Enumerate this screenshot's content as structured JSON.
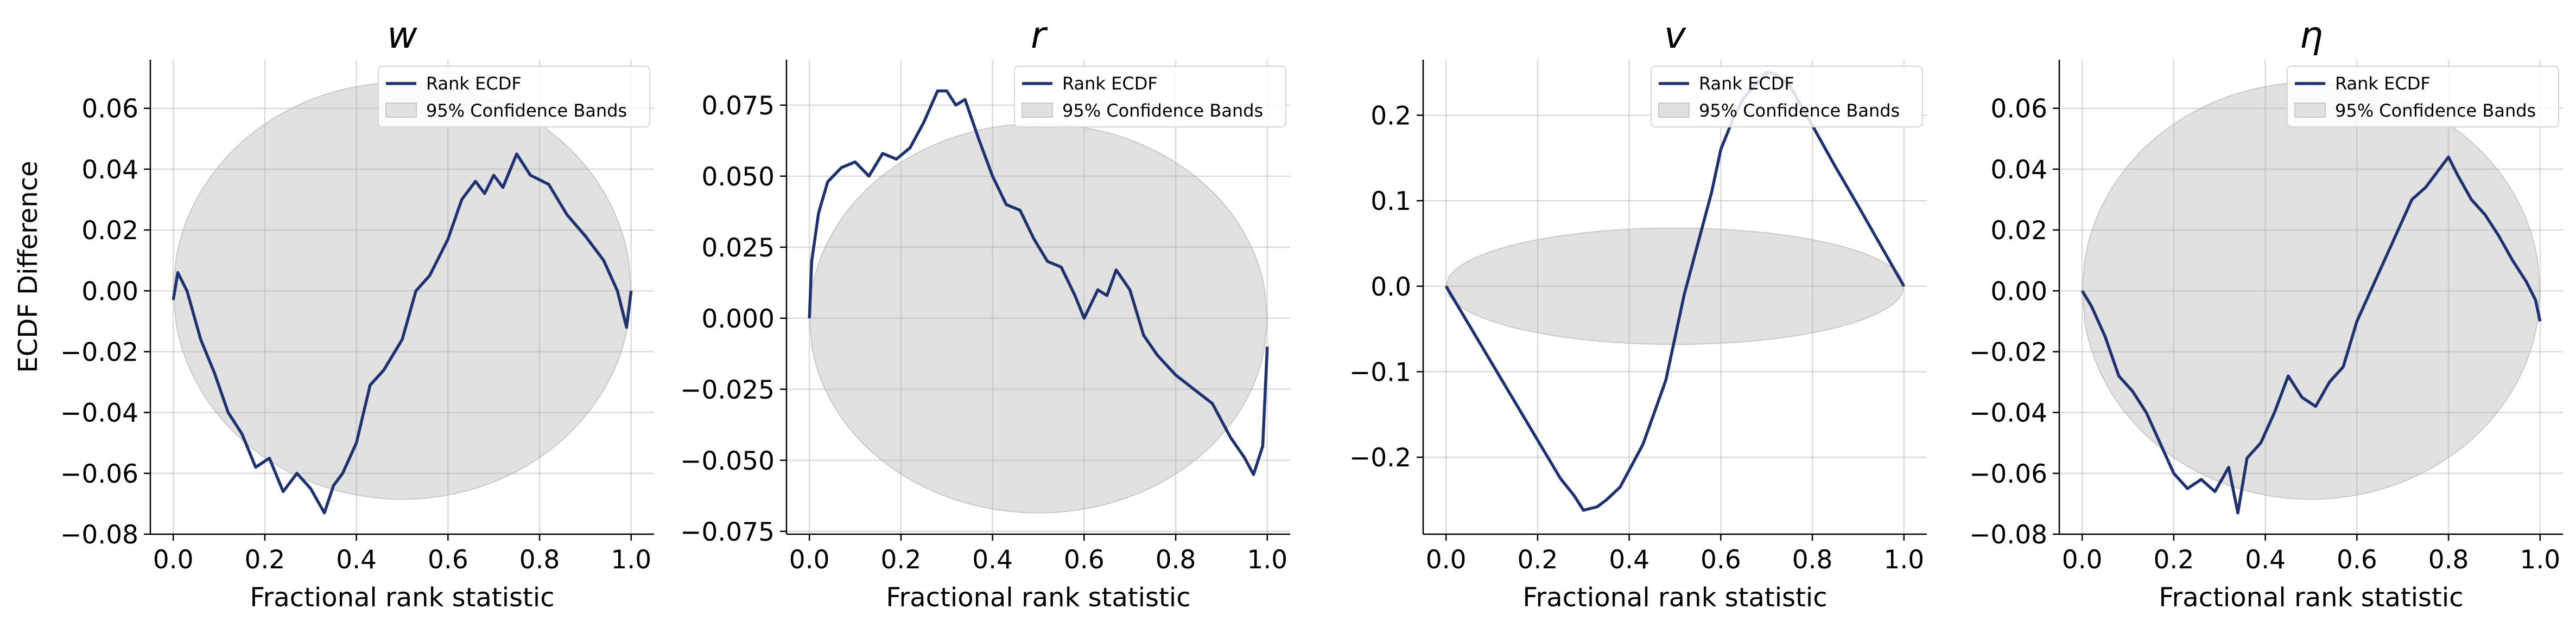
{
  "figure": {
    "ylabel": "ECDF Difference",
    "legend_line_label": "Rank ECDF",
    "legend_band_label": "95% Confidence Bands",
    "line_color": "#1f3270",
    "band_color": "#e1e1e1"
  },
  "chart_data": [
    {
      "type": "line",
      "title": "w",
      "xlabel": "Fractional rank statistic",
      "ylabel": "ECDF Difference",
      "xlim": [
        -0.05,
        1.05
      ],
      "ylim": [
        -0.08,
        0.076
      ],
      "xticks": [
        0.0,
        0.2,
        0.4,
        0.6,
        0.8,
        1.0
      ],
      "xtick_labels": [
        "0.0",
        "0.2",
        "0.4",
        "0.6",
        "0.8",
        "1.0"
      ],
      "yticks": [
        -0.08,
        -0.06,
        -0.04,
        -0.02,
        0.0,
        0.02,
        0.04,
        0.06
      ],
      "ytick_labels": [
        "−0.08",
        "−0.06",
        "−0.04",
        "−0.02",
        "0.00",
        "0.02",
        "0.04",
        "0.06"
      ],
      "grid": true,
      "legend": "top-right",
      "band_halfwidth": 0.0685,
      "series": [
        {
          "name": "Rank ECDF",
          "x": [
            0.0,
            0.01,
            0.03,
            0.06,
            0.09,
            0.12,
            0.15,
            0.18,
            0.21,
            0.24,
            0.27,
            0.3,
            0.33,
            0.35,
            0.37,
            0.4,
            0.43,
            0.46,
            0.5,
            0.53,
            0.56,
            0.6,
            0.63,
            0.66,
            0.68,
            0.7,
            0.72,
            0.75,
            0.78,
            0.82,
            0.86,
            0.9,
            0.94,
            0.97,
            0.99,
            1.0
          ],
          "y": [
            -0.003,
            0.006,
            0.0,
            -0.016,
            -0.027,
            -0.04,
            -0.047,
            -0.058,
            -0.055,
            -0.066,
            -0.06,
            -0.065,
            -0.073,
            -0.064,
            -0.06,
            -0.05,
            -0.031,
            -0.026,
            -0.016,
            0.0,
            0.005,
            0.017,
            0.03,
            0.036,
            0.032,
            0.038,
            0.034,
            0.045,
            0.038,
            0.035,
            0.025,
            0.018,
            0.01,
            0.0,
            -0.012,
            0.0
          ]
        }
      ]
    },
    {
      "type": "line",
      "title": "r",
      "xlabel": "Fractional rank statistic",
      "xlim": [
        -0.05,
        1.05
      ],
      "ylim": [
        -0.076,
        0.091
      ],
      "xticks": [
        0.0,
        0.2,
        0.4,
        0.6,
        0.8,
        1.0
      ],
      "xtick_labels": [
        "0.0",
        "0.2",
        "0.4",
        "0.6",
        "0.8",
        "1.0"
      ],
      "yticks": [
        -0.075,
        -0.05,
        -0.025,
        0.0,
        0.025,
        0.05,
        0.075
      ],
      "ytick_labels": [
        "−0.075",
        "−0.050",
        "−0.025",
        "0.000",
        "0.025",
        "0.050",
        "0.075"
      ],
      "grid": true,
      "legend": "top-right",
      "band_halfwidth": 0.0685,
      "series": [
        {
          "name": "Rank ECDF",
          "x": [
            0.0,
            0.005,
            0.02,
            0.04,
            0.07,
            0.1,
            0.13,
            0.16,
            0.19,
            0.22,
            0.25,
            0.28,
            0.3,
            0.32,
            0.34,
            0.37,
            0.4,
            0.43,
            0.46,
            0.49,
            0.52,
            0.55,
            0.58,
            0.6,
            0.63,
            0.65,
            0.67,
            0.7,
            0.73,
            0.76,
            0.8,
            0.84,
            0.88,
            0.92,
            0.95,
            0.97,
            0.99,
            1.0
          ],
          "y": [
            0.0,
            0.02,
            0.037,
            0.048,
            0.053,
            0.055,
            0.05,
            0.058,
            0.056,
            0.06,
            0.069,
            0.08,
            0.08,
            0.075,
            0.077,
            0.063,
            0.05,
            0.04,
            0.038,
            0.028,
            0.02,
            0.018,
            0.008,
            0.0,
            0.01,
            0.008,
            0.017,
            0.01,
            -0.006,
            -0.013,
            -0.02,
            -0.025,
            -0.03,
            -0.042,
            -0.049,
            -0.055,
            -0.045,
            -0.01
          ]
        }
      ]
    },
    {
      "type": "line",
      "title": "v",
      "xlabel": "Fractional rank statistic",
      "xlim": [
        -0.05,
        1.05
      ],
      "ylim": [
        -0.29,
        0.265
      ],
      "xticks": [
        0.0,
        0.2,
        0.4,
        0.6,
        0.8,
        1.0
      ],
      "xtick_labels": [
        "0.0",
        "0.2",
        "0.4",
        "0.6",
        "0.8",
        "1.0"
      ],
      "yticks": [
        -0.2,
        -0.1,
        0.0,
        0.1,
        0.2
      ],
      "ytick_labels": [
        "−0.2",
        "−0.1",
        "0.0",
        "0.1",
        "0.2"
      ],
      "grid": true,
      "legend": "top-right",
      "band_halfwidth": 0.068,
      "series": [
        {
          "name": "Rank ECDF",
          "x": [
            0.0,
            0.05,
            0.1,
            0.15,
            0.2,
            0.25,
            0.28,
            0.3,
            0.33,
            0.35,
            0.38,
            0.4,
            0.43,
            0.45,
            0.48,
            0.5,
            0.52,
            0.55,
            0.58,
            0.6,
            0.63,
            0.65,
            0.68,
            0.7,
            0.72,
            0.75,
            0.8,
            0.85,
            0.9,
            0.95,
            1.0
          ],
          "y": [
            0.0,
            -0.045,
            -0.09,
            -0.135,
            -0.18,
            -0.225,
            -0.245,
            -0.262,
            -0.258,
            -0.25,
            -0.235,
            -0.215,
            -0.185,
            -0.155,
            -0.11,
            -0.06,
            -0.01,
            0.05,
            0.11,
            0.16,
            0.2,
            0.22,
            0.238,
            0.25,
            0.248,
            0.235,
            0.188,
            0.14,
            0.094,
            0.047,
            0.0
          ]
        }
      ]
    },
    {
      "type": "line",
      "title": "η",
      "xlabel": "Fractional rank statistic",
      "xlim": [
        -0.05,
        1.05
      ],
      "ylim": [
        -0.08,
        0.076
      ],
      "xticks": [
        0.0,
        0.2,
        0.4,
        0.6,
        0.8,
        1.0
      ],
      "xtick_labels": [
        "0.0",
        "0.2",
        "0.4",
        "0.6",
        "0.8",
        "1.0"
      ],
      "yticks": [
        -0.08,
        -0.06,
        -0.04,
        -0.02,
        0.0,
        0.02,
        0.04,
        0.06
      ],
      "ytick_labels": [
        "−0.08",
        "−0.06",
        "−0.04",
        "−0.02",
        "0.00",
        "0.02",
        "0.04",
        "0.06"
      ],
      "grid": true,
      "legend": "top-right",
      "band_halfwidth": 0.0685,
      "series": [
        {
          "name": "Rank ECDF",
          "x": [
            0.0,
            0.02,
            0.05,
            0.08,
            0.11,
            0.14,
            0.17,
            0.2,
            0.23,
            0.26,
            0.29,
            0.32,
            0.34,
            0.36,
            0.39,
            0.42,
            0.45,
            0.48,
            0.51,
            0.54,
            0.57,
            0.6,
            0.63,
            0.66,
            0.69,
            0.72,
            0.75,
            0.78,
            0.8,
            0.82,
            0.85,
            0.88,
            0.91,
            0.94,
            0.97,
            0.99,
            1.0
          ],
          "y": [
            0.0,
            -0.005,
            -0.015,
            -0.028,
            -0.033,
            -0.04,
            -0.05,
            -0.06,
            -0.065,
            -0.062,
            -0.066,
            -0.058,
            -0.073,
            -0.055,
            -0.05,
            -0.04,
            -0.028,
            -0.035,
            -0.038,
            -0.03,
            -0.025,
            -0.01,
            0.0,
            0.01,
            0.02,
            0.03,
            0.034,
            0.04,
            0.044,
            0.038,
            0.03,
            0.025,
            0.018,
            0.01,
            0.003,
            -0.003,
            -0.01
          ]
        }
      ]
    }
  ]
}
